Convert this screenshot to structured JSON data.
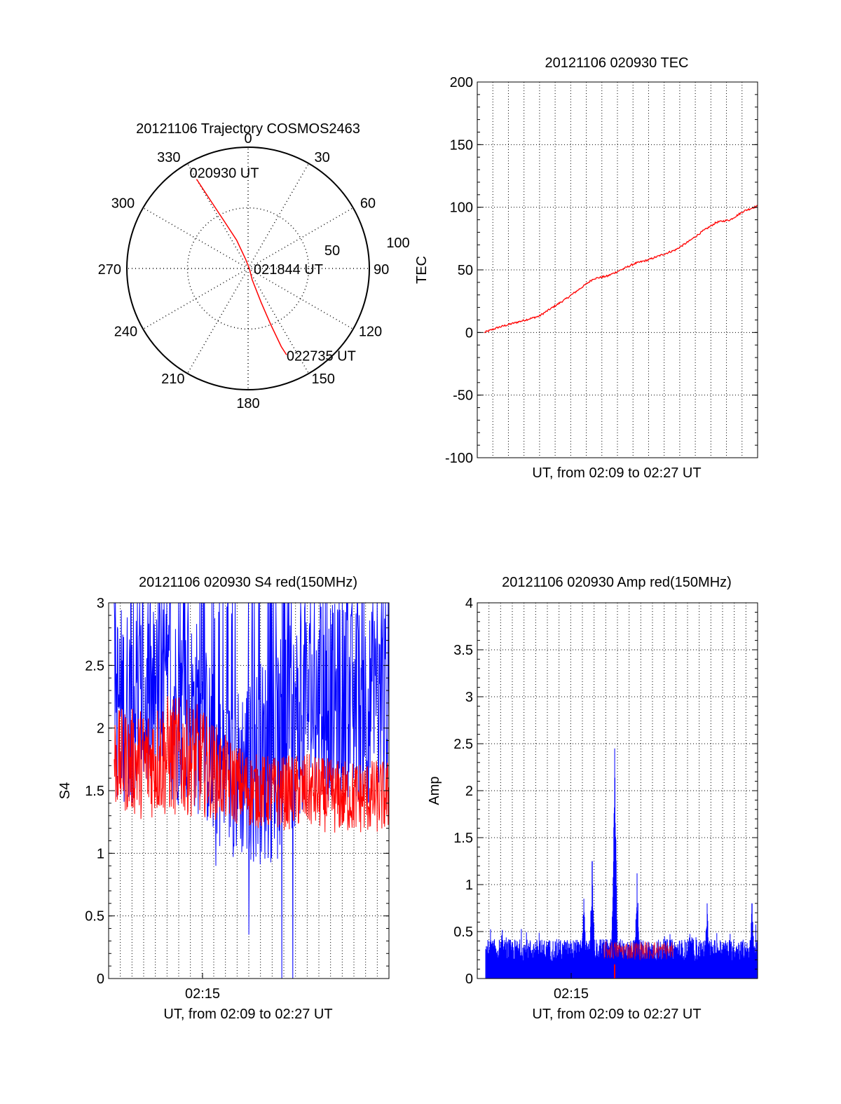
{
  "colors": {
    "red": "#ff0000",
    "blue": "#0000ff",
    "axis": "#000000"
  },
  "chart_data": [
    {
      "id": "trajectory",
      "type": "polar",
      "title": "20121106 Trajectory COSMOS2463",
      "angle_labels": [
        "0",
        "30",
        "60",
        "90",
        "120",
        "150",
        "180",
        "210",
        "240",
        "270",
        "300",
        "330"
      ],
      "radial_ticks": [
        "50",
        "100"
      ],
      "radial_range": [
        0,
        100
      ],
      "grid": true,
      "point_labels": [
        "020930 UT",
        "021844 UT",
        "022735 UT"
      ],
      "track": [
        {
          "az": 330,
          "r": 85
        },
        {
          "az": 331,
          "r": 65
        },
        {
          "az": 333,
          "r": 45
        },
        {
          "az": 338,
          "r": 25
        },
        {
          "az": 345,
          "r": 8
        },
        {
          "az": 90,
          "r": 1
        },
        {
          "az": 160,
          "r": 10
        },
        {
          "az": 159,
          "r": 30
        },
        {
          "az": 158,
          "r": 50
        },
        {
          "az": 157,
          "r": 70
        },
        {
          "az": 156,
          "r": 78
        }
      ]
    },
    {
      "id": "tec",
      "type": "line",
      "title": "20121106 020930 TEC",
      "xlabel": "UT, from 02:09 to 02:27 UT",
      "ylabel": "TEC",
      "ylim": [
        -100,
        200
      ],
      "yticks": [
        "-100",
        "-50",
        "0",
        "50",
        "100",
        "150",
        "200"
      ],
      "grid": true,
      "series": [
        {
          "color": "red",
          "x": [
            0,
            0.05,
            0.1,
            0.15,
            0.2,
            0.25,
            0.3,
            0.35,
            0.4,
            0.45,
            0.5,
            0.55,
            0.6,
            0.65,
            0.7,
            0.75,
            0.8,
            0.85,
            0.9,
            0.95,
            1.0
          ],
          "y": [
            0,
            4,
            7,
            10,
            13,
            20,
            27,
            35,
            43,
            45,
            50,
            55,
            58,
            62,
            66,
            73,
            81,
            88,
            90,
            97,
            101
          ]
        }
      ]
    },
    {
      "id": "s4",
      "type": "line",
      "title": "20121106 020930 S4 red(150MHz)",
      "xlabel": "UT, from 02:09 to 02:27 UT",
      "ylabel": "S4",
      "ylim": [
        0,
        3
      ],
      "yticks": [
        "0",
        "0.5",
        "1",
        "1.5",
        "2",
        "2.5",
        "3"
      ],
      "xtick_labels": [
        "02:15"
      ],
      "grid": true,
      "series": [
        {
          "color": "red",
          "x": [
            0,
            0.1,
            0.2,
            0.3,
            0.4,
            0.5,
            0.6,
            0.7,
            0.8,
            0.9,
            1.0
          ],
          "y_mean": [
            1.75,
            1.72,
            1.78,
            1.75,
            1.6,
            1.5,
            1.48,
            1.5,
            1.45,
            1.45,
            1.45
          ],
          "y_spread": [
            0.4,
            0.45,
            0.5,
            0.45,
            0.35,
            0.3,
            0.3,
            0.3,
            0.3,
            0.3,
            0.3
          ]
        },
        {
          "color": "blue",
          "x": [
            0,
            0.1,
            0.2,
            0.3,
            0.4,
            0.5,
            0.6,
            0.7,
            0.8,
            0.9,
            1.0
          ],
          "y_mean": [
            2.2,
            2.2,
            2.2,
            2.1,
            1.6,
            1.7,
            1.8,
            2.2,
            2.2,
            2.2,
            2.1
          ],
          "y_spread": [
            0.8,
            0.8,
            0.8,
            0.8,
            0.6,
            0.8,
            0.9,
            0.8,
            0.8,
            0.8,
            0.8
          ],
          "dips": [
            {
              "x": 0.37,
              "y": 0.9
            },
            {
              "x": 0.49,
              "y": 0.35
            },
            {
              "x": 0.61,
              "y": 0.0
            },
            {
              "x": 0.65,
              "y": 0.0
            }
          ]
        }
      ]
    },
    {
      "id": "amp",
      "type": "line",
      "title": "20121106 020930 Amp red(150MHz)",
      "xlabel": "UT, from 02:09 to 02:27 UT",
      "ylabel": "Amp",
      "ylim": [
        0,
        4
      ],
      "yticks": [
        "0",
        "0.5",
        "1",
        "1.5",
        "2",
        "2.5",
        "3",
        "3.5",
        "4"
      ],
      "xtick_labels": [
        "02:15"
      ],
      "grid": true,
      "series": [
        {
          "color": "blue",
          "x_start": 0.03,
          "baseline": 0.3,
          "spread": 0.12,
          "spikes": [
            {
              "x": 0.38,
              "y": 0.85
            },
            {
              "x": 0.41,
              "y": 1.25
            },
            {
              "x": 0.49,
              "y": 2.45
            },
            {
              "x": 0.57,
              "y": 1.12
            },
            {
              "x": 0.82,
              "y": 0.8
            },
            {
              "x": 0.98,
              "y": 0.8
            }
          ]
        },
        {
          "color": "red",
          "x_start": 0.03,
          "baseline": 0.3,
          "spread": 0.1
        }
      ]
    }
  ]
}
